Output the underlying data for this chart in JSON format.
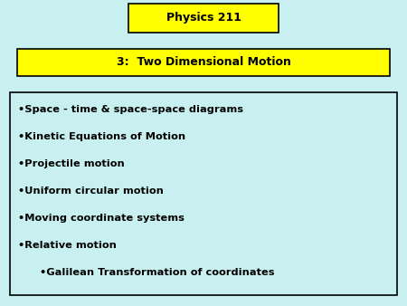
{
  "background_color": "#c8f0f0",
  "title_box_text": "Physics 211",
  "title_box_bg": "#ffff00",
  "title_box_border": "#000000",
  "subtitle_box_text": "3:  Two Dimensional Motion",
  "subtitle_box_bg": "#ffff00",
  "subtitle_box_border": "#000000",
  "bullet_box_bg": "#c8f0f0",
  "bullet_box_border": "#000000",
  "bullet_items": [
    "•Space - time & space-space diagrams",
    "•Kinetic Equations of Motion",
    "•Projectile motion",
    "•Uniform circular motion",
    "•Moving coordinate systems",
    "•Relative motion",
    "      •Galilean Transformation of coordinates"
  ],
  "text_color": "#000000",
  "title_fontsize": 9,
  "subtitle_fontsize": 9,
  "bullet_fontsize": 8.2,
  "fig_width": 4.5,
  "fig_height": 3.38,
  "dpi": 100
}
